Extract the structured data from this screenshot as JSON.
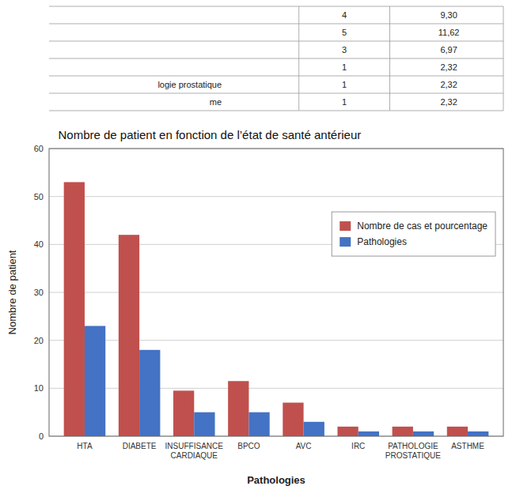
{
  "chart_data": {
    "type": "bar",
    "title": "Nombre de patient en fonction de l’état de santé antérieur",
    "xlabel": "Pathologies",
    "ylabel": "Nombre de patient",
    "categories": [
      "HTA",
      "DIABETE",
      "INSUFFISANCE\nCARDIAQUE",
      "BPCO",
      "AVC",
      "IRC",
      "PATHOLOGIE\nPROSTATIQUE",
      "ASTHME"
    ],
    "series": [
      {
        "name": "Nombre de cas et pourcentage",
        "color": "#c0504d",
        "values": [
          53,
          42,
          9.5,
          11.5,
          7,
          2,
          2,
          2
        ]
      },
      {
        "name": "Pathologies",
        "color": "#4472c4",
        "values": [
          23,
          18,
          5,
          5,
          3,
          1,
          1,
          1
        ]
      }
    ],
    "ylim": [
      0,
      60
    ],
    "yticks": [
      0,
      10,
      20,
      30,
      40,
      50,
      60
    ],
    "grid": true,
    "legend": "upper right",
    "table": [
      [
        null,
        "4",
        "9,30"
      ],
      [
        null,
        "5",
        "11,62"
      ],
      [
        null,
        "3",
        "6,97"
      ],
      [
        null,
        "1",
        "2,32"
      ],
      [
        "logie prostatique",
        "1",
        "2,32"
      ],
      [
        "me",
        "1",
        "2,32"
      ]
    ]
  }
}
